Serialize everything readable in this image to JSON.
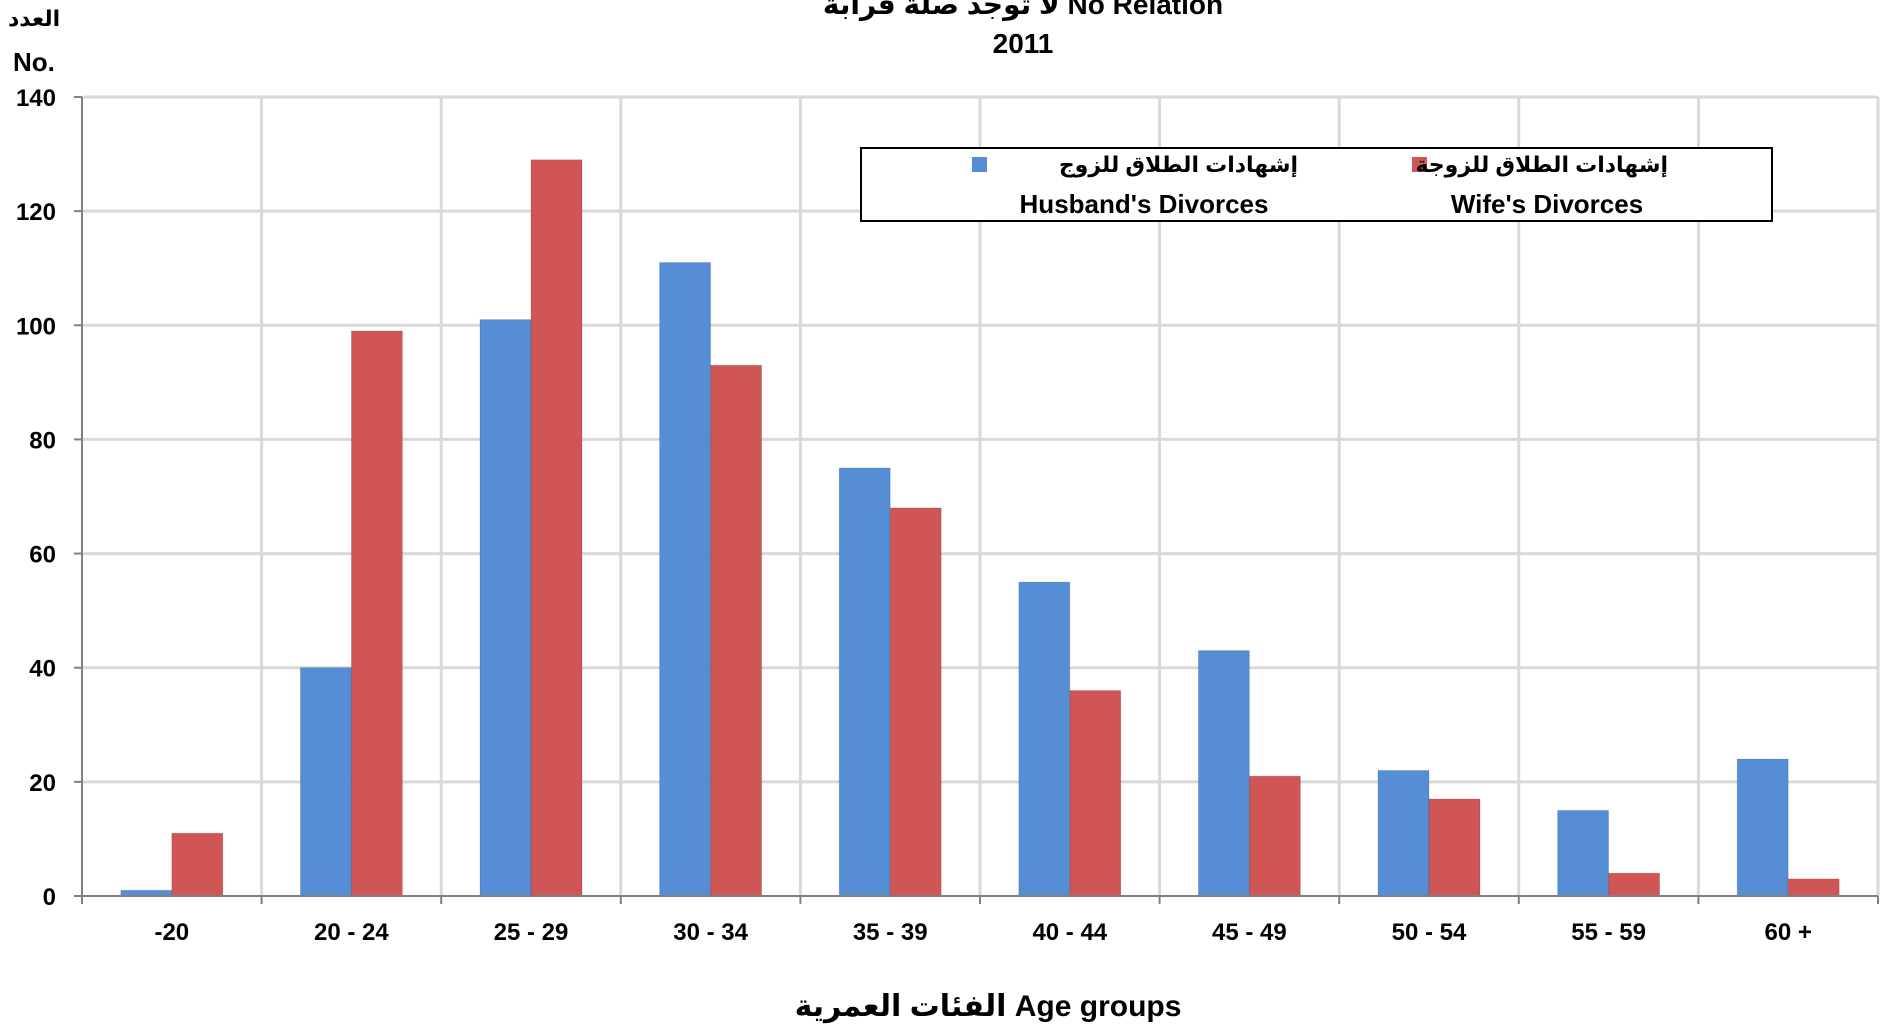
{
  "chart_data": {
    "type": "bar",
    "title_line1": "لا توجد صلة قرابة  No Relation",
    "title_line2": "2011",
    "ylabel_ar": "العدد",
    "ylabel_en": "No.",
    "xlabel": "الفئات العمرية Age groups",
    "categories": [
      "-20",
      "20 - 24",
      "25 - 29",
      "30 - 34",
      "35 - 39",
      "40 - 44",
      "45 - 49",
      "50 - 54",
      "55 - 59",
      "60 +"
    ],
    "ylim": [
      0,
      140
    ],
    "yticks": [
      "0",
      "20",
      "40",
      "60",
      "80",
      "100",
      "120",
      "140"
    ],
    "grid": true,
    "legend_position": "top-right",
    "series": [
      {
        "name_ar": "إشهادات الطلاق للزوج",
        "name": "Husband's Divorces",
        "color": "#558ED5",
        "values": [
          1,
          40,
          101,
          111,
          75,
          55,
          43,
          22,
          15,
          24
        ]
      },
      {
        "name_ar": "إشهادات الطلاق للزوجة",
        "name": "Wife's Divorces",
        "color": "#D05656",
        "values": [
          11,
          99,
          129,
          93,
          68,
          36,
          21,
          17,
          4,
          3
        ]
      }
    ]
  }
}
